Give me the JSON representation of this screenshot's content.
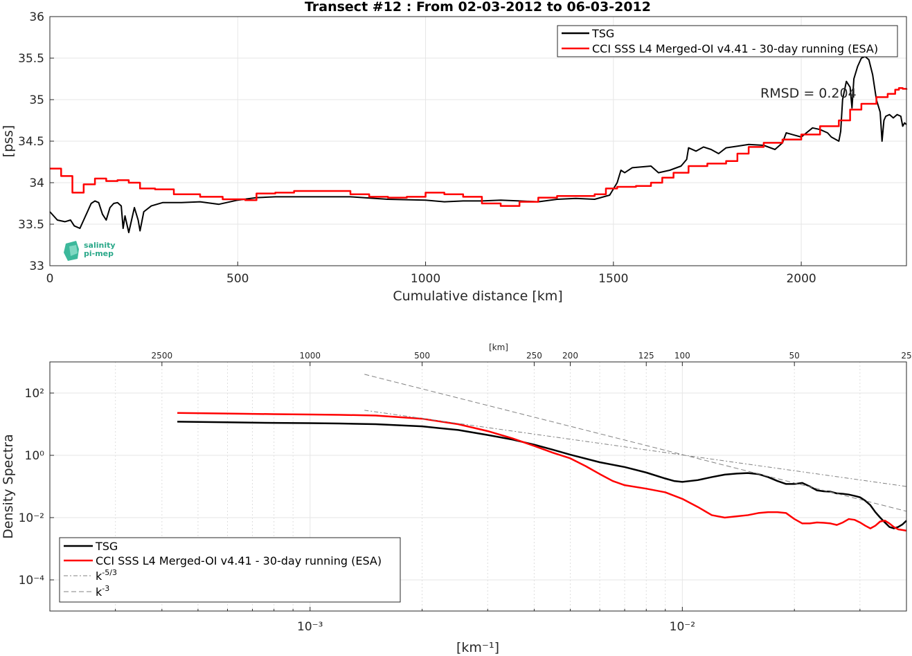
{
  "chart_data": [
    {
      "type": "line",
      "title": "Transect #12 : From 02-03-2012 to 06-03-2012",
      "xlabel": "Cumulative distance [km]",
      "ylabel": "[pss]",
      "xlim": [
        0,
        2280
      ],
      "ylim": [
        33,
        36
      ],
      "xticks": [
        0,
        500,
        1000,
        1500,
        2000
      ],
      "yticks": [
        33,
        33.5,
        34,
        34.5,
        35,
        35.5,
        36
      ],
      "xtick_labels": [
        "0",
        "500",
        "1000",
        "1500",
        "2000"
      ],
      "ytick_labels": [
        "33",
        "33.5",
        "34",
        "34.5",
        "35",
        "35.5",
        "36"
      ],
      "grid": true,
      "legend_position": "top-right",
      "annotation": "RMSD = 0.204",
      "logo_text": [
        "salinity",
        "pi-mep"
      ],
      "series": [
        {
          "name": "TSG",
          "color": "#000000",
          "x": [
            0,
            20,
            40,
            55,
            65,
            80,
            95,
            110,
            120,
            130,
            140,
            150,
            160,
            170,
            180,
            190,
            195,
            200,
            210,
            215,
            225,
            235,
            240,
            250,
            270,
            300,
            350,
            400,
            450,
            500,
            550,
            600,
            700,
            800,
            900,
            1000,
            1050,
            1100,
            1150,
            1200,
            1250,
            1300,
            1350,
            1400,
            1450,
            1490,
            1510,
            1520,
            1530,
            1550,
            1600,
            1620,
            1650,
            1680,
            1695,
            1700,
            1720,
            1740,
            1760,
            1780,
            1800,
            1830,
            1860,
            1900,
            1930,
            1950,
            1960,
            2000,
            2030,
            2050,
            2070,
            2080,
            2100,
            2105,
            2110,
            2120,
            2130,
            2135,
            2140,
            2150,
            2160,
            2170,
            2180,
            2190,
            2200,
            2210,
            2215,
            2220,
            2225,
            2235,
            2245,
            2255,
            2265,
            2270,
            2275,
            2280
          ],
          "y": [
            33.65,
            33.55,
            33.53,
            33.55,
            33.48,
            33.45,
            33.6,
            33.75,
            33.78,
            33.76,
            33.62,
            33.55,
            33.7,
            33.75,
            33.76,
            33.72,
            33.45,
            33.6,
            33.4,
            33.5,
            33.7,
            33.55,
            33.42,
            33.65,
            33.72,
            33.76,
            33.76,
            33.77,
            33.74,
            33.79,
            33.82,
            33.83,
            33.83,
            33.83,
            33.8,
            33.79,
            33.77,
            33.78,
            33.78,
            33.79,
            33.78,
            33.77,
            33.8,
            33.81,
            33.8,
            33.85,
            34.0,
            34.15,
            34.12,
            34.18,
            34.2,
            34.12,
            34.15,
            34.2,
            34.28,
            34.42,
            34.38,
            34.43,
            34.4,
            34.35,
            34.42,
            34.44,
            34.46,
            34.45,
            34.4,
            34.48,
            34.6,
            34.55,
            34.66,
            34.64,
            34.6,
            34.55,
            34.5,
            34.62,
            35.0,
            35.22,
            35.15,
            34.9,
            35.25,
            35.4,
            35.5,
            35.52,
            35.48,
            35.3,
            35.0,
            34.85,
            34.5,
            34.75,
            34.8,
            34.82,
            34.78,
            34.82,
            34.8,
            34.68,
            34.72,
            34.7
          ]
        },
        {
          "name": "CCI SSS L4 Merged-OI v4.41 - 30-day running (ESA)",
          "color": "#ff0000",
          "x": [
            0,
            30,
            60,
            90,
            120,
            150,
            180,
            210,
            240,
            280,
            330,
            400,
            460,
            520,
            550,
            600,
            650,
            700,
            800,
            850,
            900,
            950,
            1000,
            1050,
            1100,
            1150,
            1200,
            1250,
            1300,
            1350,
            1400,
            1450,
            1480,
            1510,
            1530,
            1560,
            1600,
            1630,
            1660,
            1700,
            1750,
            1800,
            1830,
            1860,
            1900,
            1950,
            2000,
            2050,
            2100,
            2130,
            2160,
            2200,
            2230,
            2250,
            2260,
            2270,
            2280
          ],
          "y": [
            34.17,
            34.08,
            33.88,
            33.98,
            34.05,
            34.02,
            34.03,
            34.0,
            33.93,
            33.92,
            33.86,
            33.83,
            33.8,
            33.79,
            33.87,
            33.88,
            33.9,
            33.9,
            33.86,
            33.83,
            33.82,
            33.83,
            33.88,
            33.86,
            33.83,
            33.75,
            33.72,
            33.77,
            33.82,
            33.84,
            33.84,
            33.86,
            33.93,
            33.95,
            33.95,
            33.96,
            34.0,
            34.06,
            34.12,
            34.2,
            34.23,
            34.26,
            34.35,
            34.43,
            34.48,
            34.52,
            34.58,
            34.68,
            34.75,
            34.88,
            34.95,
            35.03,
            35.07,
            35.12,
            35.14,
            35.13,
            35.12
          ]
        }
      ]
    },
    {
      "type": "line",
      "xlabel": "[km⁻¹]",
      "ylabel": "Density Spectra",
      "top_axis_label": "[km]",
      "x_scale": "log",
      "y_scale": "log",
      "xlim": [
        0.0002,
        0.04
      ],
      "ylim": [
        1e-05,
        1000
      ],
      "xticks": [
        0.001,
        0.01
      ],
      "xtick_labels": [
        "10⁻³",
        "10⁻²"
      ],
      "yticks": [
        0.0001,
        0.01,
        1,
        100
      ],
      "ytick_labels": [
        "10⁻⁴",
        "10⁻²",
        "10⁰",
        "10²"
      ],
      "top_ticks_km": [
        2500,
        1000,
        500,
        250,
        200,
        125,
        100,
        50,
        25
      ],
      "top_tick_labels": [
        "2500",
        "1000",
        "500",
        "250",
        "200",
        "125",
        "100",
        "50",
        "25"
      ],
      "grid": true,
      "legend_position": "bottom-left",
      "series": [
        {
          "name": "TSG",
          "color": "#000000",
          "x": [
            0.00044,
            0.0006,
            0.0008,
            0.001,
            0.0012,
            0.0015,
            0.002,
            0.0025,
            0.003,
            0.0035,
            0.004,
            0.0045,
            0.005,
            0.006,
            0.007,
            0.008,
            0.009,
            0.0095,
            0.01,
            0.011,
            0.012,
            0.013,
            0.014,
            0.015,
            0.016,
            0.017,
            0.018,
            0.019,
            0.02,
            0.021,
            0.022,
            0.023,
            0.024,
            0.025,
            0.026,
            0.027,
            0.028,
            0.029,
            0.03,
            0.031,
            0.032,
            0.033,
            0.034,
            0.035,
            0.036,
            0.037,
            0.038,
            0.039,
            0.04
          ],
          "y": [
            12,
            11.5,
            11,
            10.8,
            10.5,
            10,
            8.5,
            6.5,
            4.5,
            3.2,
            2.2,
            1.5,
            1.05,
            0.6,
            0.42,
            0.28,
            0.18,
            0.15,
            0.14,
            0.16,
            0.2,
            0.24,
            0.26,
            0.27,
            0.25,
            0.2,
            0.15,
            0.12,
            0.12,
            0.13,
            0.1,
            0.075,
            0.07,
            0.068,
            0.06,
            0.058,
            0.055,
            0.05,
            0.045,
            0.035,
            0.025,
            0.015,
            0.01,
            0.007,
            0.005,
            0.0045,
            0.005,
            0.006,
            0.008
          ]
        },
        {
          "name": "CCI SSS L4 Merged-OI v4.41 - 30-day running (ESA)",
          "color": "#ff0000",
          "x": [
            0.00044,
            0.0006,
            0.0008,
            0.001,
            0.0012,
            0.0015,
            0.002,
            0.0025,
            0.003,
            0.0035,
            0.004,
            0.0045,
            0.005,
            0.0055,
            0.006,
            0.0065,
            0.007,
            0.008,
            0.009,
            0.01,
            0.011,
            0.012,
            0.013,
            0.014,
            0.015,
            0.016,
            0.017,
            0.018,
            0.019,
            0.02,
            0.021,
            0.022,
            0.023,
            0.024,
            0.025,
            0.026,
            0.027,
            0.028,
            0.029,
            0.03,
            0.031,
            0.032,
            0.033,
            0.034,
            0.035,
            0.036,
            0.037,
            0.038,
            0.039,
            0.04
          ],
          "y": [
            23,
            22,
            21,
            20.5,
            20,
            19,
            15,
            10,
            6,
            3.5,
            2.0,
            1.2,
            0.8,
            0.45,
            0.25,
            0.15,
            0.11,
            0.085,
            0.065,
            0.04,
            0.022,
            0.012,
            0.01,
            0.011,
            0.012,
            0.014,
            0.015,
            0.015,
            0.014,
            0.009,
            0.0065,
            0.0065,
            0.007,
            0.0068,
            0.0065,
            0.0058,
            0.007,
            0.009,
            0.0085,
            0.007,
            0.0055,
            0.0045,
            0.0055,
            0.0075,
            0.008,
            0.0065,
            0.005,
            0.0042,
            0.004,
            0.0038
          ]
        },
        {
          "name": "k⁻⁵ᐟ³",
          "legend_main": "k",
          "legend_sup": "-5/3",
          "color": "#808080",
          "dash": "dashdot",
          "x": [
            0.0014,
            0.04
          ],
          "y": [
            28,
            0.1
          ]
        },
        {
          "name": "k⁻³",
          "legend_main": "k",
          "legend_sup": "-3",
          "color": "#808080",
          "dash": "dash",
          "x": [
            0.0014,
            0.04
          ],
          "y": [
            400,
            0.016
          ]
        }
      ]
    }
  ]
}
